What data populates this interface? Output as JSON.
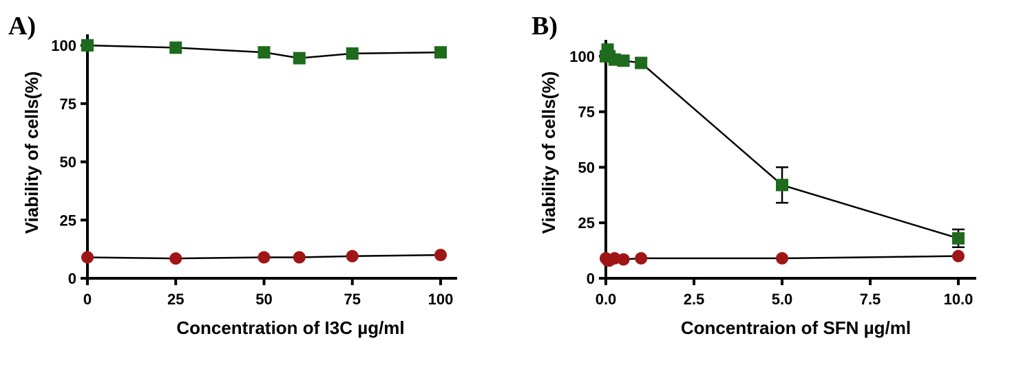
{
  "chart_data": [
    {
      "panel_label": "A)",
      "type": "line",
      "xlabel": "Concentration of I3C µg/ml",
      "ylabel": "Viability of cells(%)",
      "xlim": [
        0,
        100
      ],
      "ylim": [
        0,
        100
      ],
      "xticks": [
        0,
        25,
        50,
        75,
        100
      ],
      "xtick_labels": [
        "0",
        "25",
        "50",
        "75",
        "100"
      ],
      "yticks": [
        0,
        25,
        50,
        75,
        100
      ],
      "ytick_labels": [
        "0",
        "25",
        "50",
        "75",
        "100"
      ],
      "series": [
        {
          "marker": "square",
          "color": "#1e6b1e",
          "x": [
            0,
            25,
            50,
            60,
            75,
            100
          ],
          "y": [
            100,
            99,
            97,
            94.5,
            96.5,
            97
          ],
          "err": [
            0,
            0,
            0,
            0,
            0,
            0
          ]
        },
        {
          "marker": "circle",
          "color": "#a01515",
          "x": [
            0,
            25,
            50,
            60,
            75,
            100
          ],
          "y": [
            9,
            8.5,
            9,
            9,
            9.5,
            10
          ],
          "err": [
            0,
            0,
            0,
            0,
            0,
            0
          ]
        }
      ]
    },
    {
      "panel_label": "B)",
      "type": "line",
      "xlabel": "Concentraion of SFN µg/ml",
      "ylabel": "Viability of cells(%)",
      "xlim": [
        0,
        10
      ],
      "ylim": [
        0,
        108
      ],
      "xticks": [
        0,
        2.5,
        5,
        7.5,
        10
      ],
      "xtick_labels": [
        "0.0",
        "2.5",
        "5.0",
        "7.5",
        "10.0"
      ],
      "yticks": [
        0,
        25,
        50,
        75,
        100
      ],
      "ytick_labels": [
        "0",
        "25",
        "50",
        "75",
        "100"
      ],
      "series": [
        {
          "marker": "square",
          "color": "#1e6b1e",
          "x": [
            0,
            0.05,
            0.1,
            0.25,
            0.5,
            1,
            5,
            10
          ],
          "y": [
            100,
            103,
            100,
            98.5,
            98,
            97,
            42,
            18
          ],
          "err": [
            0,
            0,
            0,
            0,
            0,
            2,
            8,
            4
          ]
        },
        {
          "marker": "circle",
          "color": "#a01515",
          "x": [
            0,
            0.05,
            0.1,
            0.25,
            0.5,
            1,
            5,
            10
          ],
          "y": [
            9,
            8,
            8,
            9,
            8.5,
            9,
            9,
            10
          ],
          "err": [
            0,
            0,
            0,
            0,
            0,
            0,
            0,
            0
          ]
        }
      ]
    }
  ]
}
